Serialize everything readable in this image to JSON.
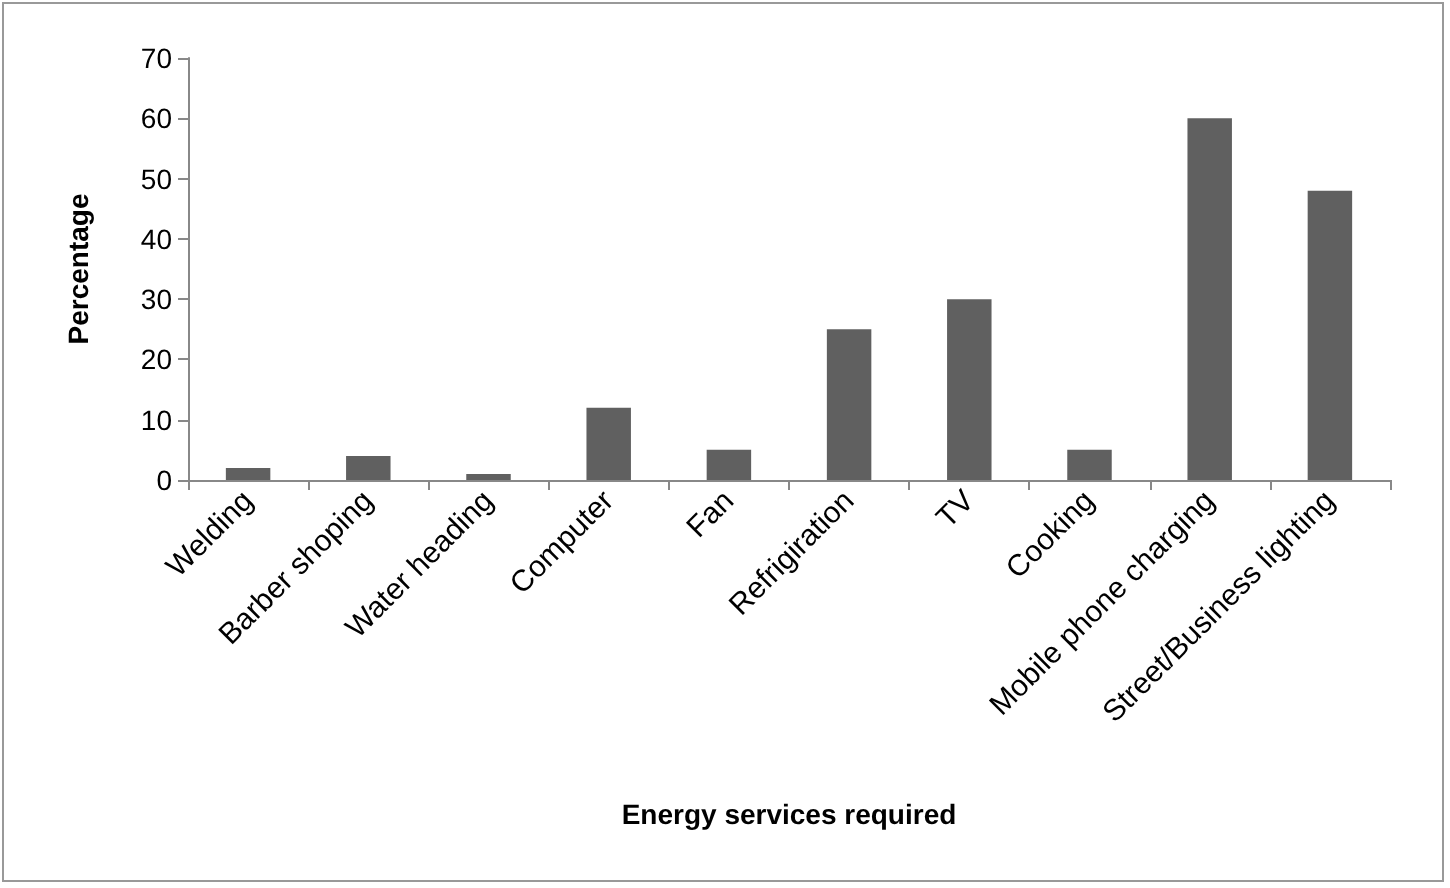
{
  "chart_data": {
    "type": "bar",
    "xlabel": "Energy services required",
    "ylabel": "Percentage",
    "categories": [
      "Welding",
      "Barber shoping",
      "Water heading",
      "Computer",
      "Fan",
      "Refrigiration",
      "TV",
      "Cooking",
      "Mobile phone charging",
      "Street/Business lighting"
    ],
    "values": [
      2,
      4,
      1,
      12,
      5,
      25,
      30,
      5,
      60,
      48
    ],
    "color": "#606060",
    "ylim": [
      0,
      70
    ],
    "yticks": [
      0,
      10,
      20,
      30,
      40,
      50,
      60,
      70
    ],
    "grid": false
  }
}
